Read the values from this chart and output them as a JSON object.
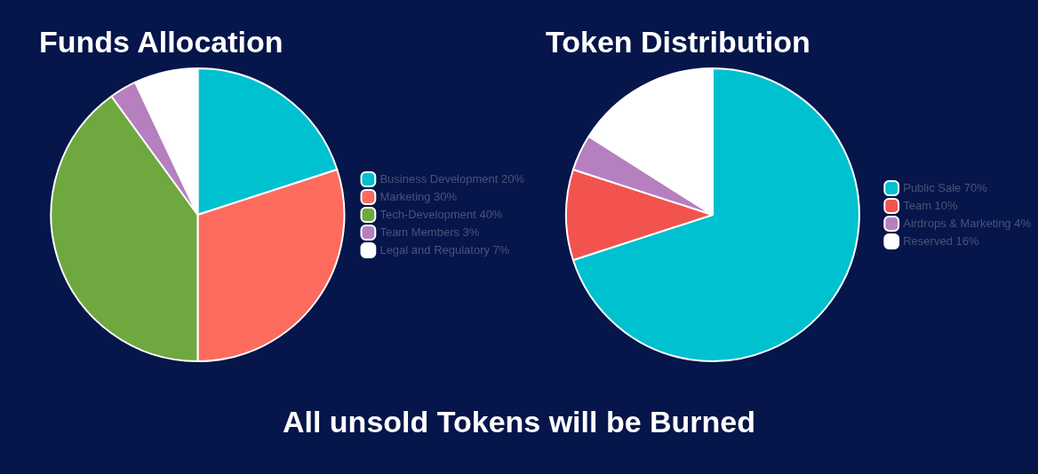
{
  "chart_data": [
    {
      "type": "pie",
      "title": "Funds Allocation",
      "categories": [
        "Business Development 20%",
        "Marketing 30%",
        "Tech-Development 40%",
        "Team Members 3%",
        "Legal and Regulatory 7%"
      ],
      "values": [
        20,
        30,
        40,
        3,
        7
      ],
      "colors": [
        "#00c1d0",
        "#fd6b5f",
        "#6ea83e",
        "#b67fbf",
        "#ffffff"
      ],
      "legend": "right",
      "annotations": [
        "All unsold Tokens will be Burned"
      ]
    },
    {
      "type": "pie",
      "title": "Token Distribution",
      "categories": [
        "Public Sale 70%",
        "Team 10%",
        "Airdrops & Marketing 4%",
        "Reserved 16%"
      ],
      "values": [
        70,
        10,
        4,
        16
      ],
      "colors": [
        "#00c1d0",
        "#f2534f",
        "#b67fbf",
        "#ffffff"
      ],
      "legend": "right"
    }
  ]
}
